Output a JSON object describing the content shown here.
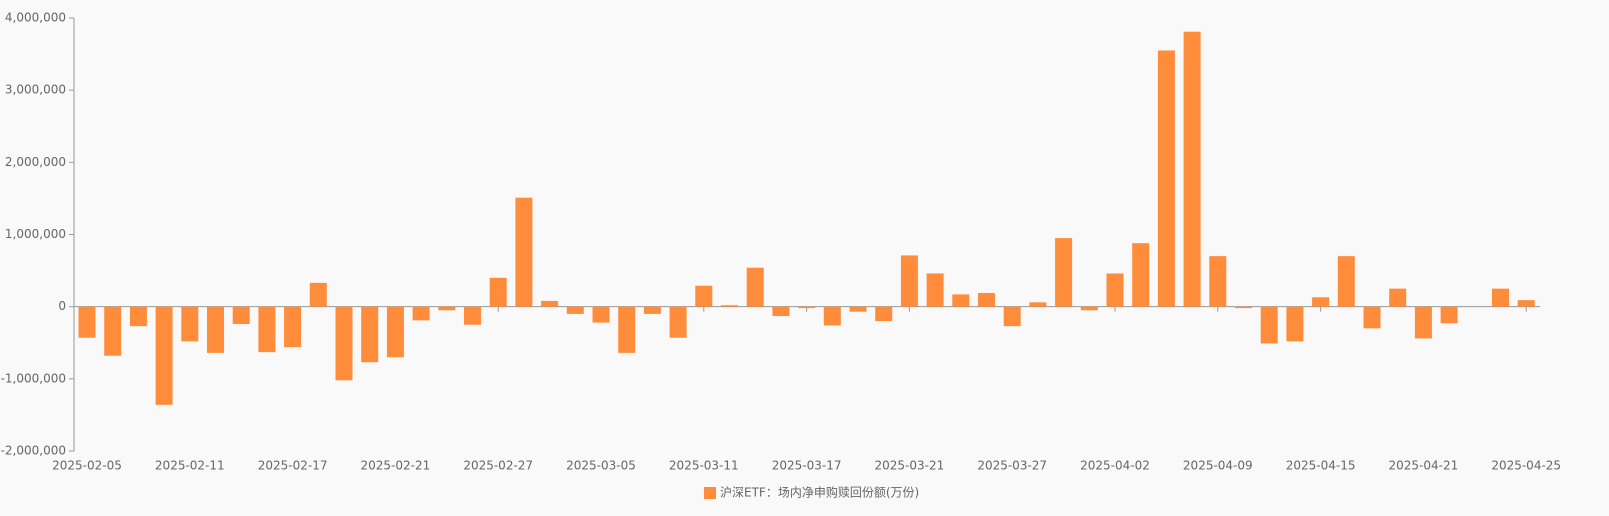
{
  "chart_data": {
    "type": "bar",
    "categories": [
      "2025-02-05",
      null,
      null,
      null,
      "2025-02-11",
      null,
      null,
      null,
      "2025-02-17",
      null,
      null,
      null,
      "2025-02-21",
      null,
      null,
      null,
      "2025-02-27",
      null,
      null,
      null,
      "2025-03-05",
      null,
      null,
      null,
      "2025-03-11",
      null,
      null,
      null,
      "2025-03-17",
      null,
      null,
      null,
      "2025-03-21",
      null,
      null,
      null,
      "2025-03-27",
      null,
      null,
      null,
      "2025-04-02",
      null,
      null,
      null,
      "2025-04-09",
      null,
      null,
      null,
      "2025-04-15",
      null,
      null,
      null,
      "2025-04-21",
      null,
      null,
      null,
      "2025-04-25"
    ],
    "series": [
      {
        "name": "沪深ETF：场内净申购赎回份额(万份)",
        "color": "#ff8c3a",
        "values": [
          -430000,
          -680000,
          -270000,
          -1360000,
          -480000,
          -640000,
          -240000,
          -630000,
          -560000,
          330000,
          -1020000,
          -770000,
          -700000,
          -190000,
          -50000,
          -250000,
          400000,
          1510000,
          80000,
          -100000,
          -220000,
          -640000,
          -100000,
          -430000,
          290000,
          20000,
          540000,
          -130000,
          -20000,
          -260000,
          -70000,
          -200000,
          710000,
          460000,
          170000,
          190000,
          -270000,
          60000,
          950000,
          -50000,
          460000,
          880000,
          3550000,
          3810000,
          700000,
          -20000,
          -510000,
          -480000,
          130000,
          700000,
          -300000,
          250000,
          -440000,
          -230000,
          0,
          250000,
          90000
        ]
      }
    ],
    "ylim": [
      -2000000,
      4000000
    ],
    "yticks": [
      {
        "value": -2000000,
        "label": "-2,000,000"
      },
      {
        "value": -1000000,
        "label": "-1,000,000"
      },
      0,
      {
        "value": 1000000,
        "label": "1,000,000"
      },
      {
        "value": 2000000,
        "label": "2,000,000"
      },
      {
        "value": 3000000,
        "label": "3,000,000"
      },
      {
        "value": 4000000,
        "label": "4,000,000"
      }
    ],
    "grid": false,
    "legend": "bottom"
  }
}
